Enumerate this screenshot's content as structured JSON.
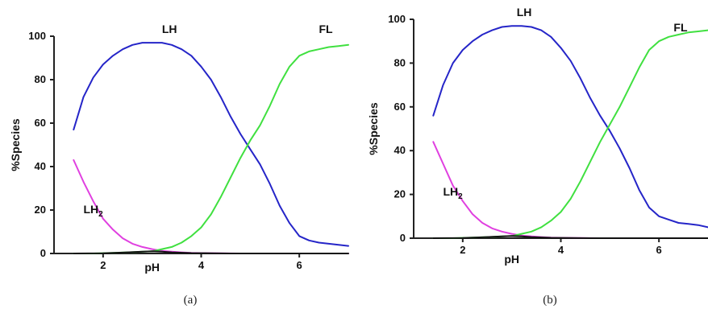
{
  "chart_data": [
    {
      "type": "line",
      "caption": "(a)",
      "xlabel": "pH",
      "ylabel": "%Species",
      "xlim": [
        1.0,
        7.0
      ],
      "ylim": [
        0,
        100
      ],
      "xticks": [
        2,
        4,
        6
      ],
      "yticks": [
        0,
        20,
        40,
        60,
        80,
        100
      ],
      "series": [
        {
          "name": "LH",
          "label_sub": "",
          "label_pos": [
            3.2,
            100
          ],
          "color": "#2525c8",
          "x": [
            1.4,
            1.6,
            1.8,
            2.0,
            2.2,
            2.4,
            2.6,
            2.8,
            3.0,
            3.2,
            3.4,
            3.6,
            3.8,
            4.0,
            4.2,
            4.4,
            4.6,
            4.8,
            5.0,
            5.2,
            5.4,
            5.6,
            5.8,
            6.0,
            6.2,
            6.4,
            6.6,
            6.8,
            7.0
          ],
          "y": [
            57,
            72,
            81,
            87,
            91,
            94,
            96,
            97,
            97,
            97,
            96,
            94,
            91,
            86,
            80,
            72,
            63,
            55,
            48,
            41,
            32,
            22,
            14,
            8,
            6,
            5,
            4.5,
            4,
            3.5
          ]
        },
        {
          "name": "LH",
          "label_sub": "2",
          "label_pos": [
            1.6,
            17
          ],
          "color": "#e040e0",
          "x": [
            1.4,
            1.6,
            1.8,
            2.0,
            2.2,
            2.4,
            2.6,
            2.8,
            3.0,
            3.2,
            3.4,
            3.6,
            3.8,
            4.0,
            4.4,
            4.8,
            5.2,
            5.6,
            6.0,
            6.4,
            7.0
          ],
          "y": [
            43,
            33,
            24,
            16,
            11,
            7,
            4.5,
            3,
            2,
            1.2,
            0.8,
            0.5,
            0.3,
            0.2,
            0.1,
            0,
            0,
            0,
            0,
            0,
            0
          ]
        },
        {
          "name": "FL",
          "label_sub": "",
          "label_pos": [
            6.4,
            100
          ],
          "color": "#40e040",
          "x": [
            1.4,
            1.8,
            2.2,
            2.6,
            3.0,
            3.2,
            3.4,
            3.6,
            3.8,
            4.0,
            4.2,
            4.4,
            4.6,
            4.8,
            5.0,
            5.2,
            5.4,
            5.6,
            5.8,
            6.0,
            6.2,
            6.4,
            6.6,
            6.8,
            7.0
          ],
          "y": [
            0,
            0,
            0.3,
            0.6,
            1,
            2,
            3,
            5,
            8,
            12,
            18,
            26,
            35,
            44,
            52,
            59,
            68,
            78,
            86,
            91,
            93,
            94,
            95,
            95.5,
            96
          ]
        },
        {
          "name": "",
          "label_sub": "",
          "label_pos": null,
          "color": "#111111",
          "x": [
            1.4,
            2.0,
            2.4,
            2.8,
            3.0,
            3.2,
            3.4,
            3.8,
            4.2,
            4.6,
            7.0
          ],
          "y": [
            0,
            0.1,
            0.4,
            0.8,
            1,
            0.8,
            0.5,
            0.2,
            0.1,
            0,
            0
          ]
        }
      ]
    },
    {
      "type": "line",
      "caption": "(b)",
      "xlabel": "pH",
      "ylabel": "%Species",
      "xlim": [
        1.0,
        7.0
      ],
      "ylim": [
        0,
        100
      ],
      "xticks": [
        2,
        4,
        6
      ],
      "yticks": [
        0,
        20,
        40,
        60,
        80,
        100
      ],
      "series": [
        {
          "name": "LH",
          "label_sub": "",
          "label_pos": [
            3.1,
            100
          ],
          "color": "#2525c8",
          "x": [
            1.4,
            1.6,
            1.8,
            2.0,
            2.2,
            2.4,
            2.6,
            2.8,
            3.0,
            3.2,
            3.4,
            3.6,
            3.8,
            4.0,
            4.2,
            4.4,
            4.6,
            4.8,
            5.0,
            5.2,
            5.4,
            5.6,
            5.8,
            6.0,
            6.2,
            6.4,
            6.6,
            6.8,
            7.0
          ],
          "y": [
            56,
            70,
            80,
            86,
            90,
            93,
            95,
            96.5,
            97,
            97,
            96.5,
            95,
            92,
            87,
            81,
            73,
            64,
            56,
            49,
            41,
            32,
            22,
            14,
            10,
            8.5,
            7,
            6.5,
            6,
            5
          ]
        },
        {
          "name": "LH",
          "label_sub": "2",
          "label_pos": [
            1.6,
            18
          ],
          "color": "#e040e0",
          "x": [
            1.4,
            1.6,
            1.8,
            2.0,
            2.2,
            2.4,
            2.6,
            2.8,
            3.0,
            3.2,
            3.4,
            3.6,
            3.8,
            4.0,
            4.4,
            4.8,
            5.2,
            5.6,
            6.0,
            6.4,
            7.0
          ],
          "y": [
            44,
            34,
            24,
            17,
            11,
            7,
            4.5,
            3,
            2,
            1.2,
            0.8,
            0.5,
            0.3,
            0.2,
            0.1,
            0,
            0,
            0,
            0,
            0,
            0
          ]
        },
        {
          "name": "FL",
          "label_sub": "",
          "label_pos": [
            6.3,
            93
          ],
          "color": "#40e040",
          "x": [
            1.4,
            1.8,
            2.2,
            2.6,
            3.0,
            3.2,
            3.4,
            3.6,
            3.8,
            4.0,
            4.2,
            4.4,
            4.6,
            4.8,
            5.0,
            5.2,
            5.4,
            5.6,
            5.8,
            6.0,
            6.2,
            6.4,
            6.6,
            6.8,
            7.0
          ],
          "y": [
            0,
            0,
            0.3,
            0.6,
            1,
            2,
            3,
            5,
            8,
            12,
            18,
            26,
            35,
            44,
            52,
            60,
            69,
            78,
            86,
            90,
            92,
            93,
            94,
            94.5,
            95
          ]
        },
        {
          "name": "",
          "label_sub": "",
          "label_pos": null,
          "color": "#111111",
          "x": [
            1.4,
            2.0,
            2.4,
            2.8,
            3.0,
            3.2,
            3.4,
            3.8,
            4.2,
            4.6,
            7.0
          ],
          "y": [
            0,
            0.1,
            0.4,
            0.8,
            1,
            0.8,
            0.5,
            0.2,
            0.1,
            0,
            0
          ]
        }
      ]
    }
  ]
}
